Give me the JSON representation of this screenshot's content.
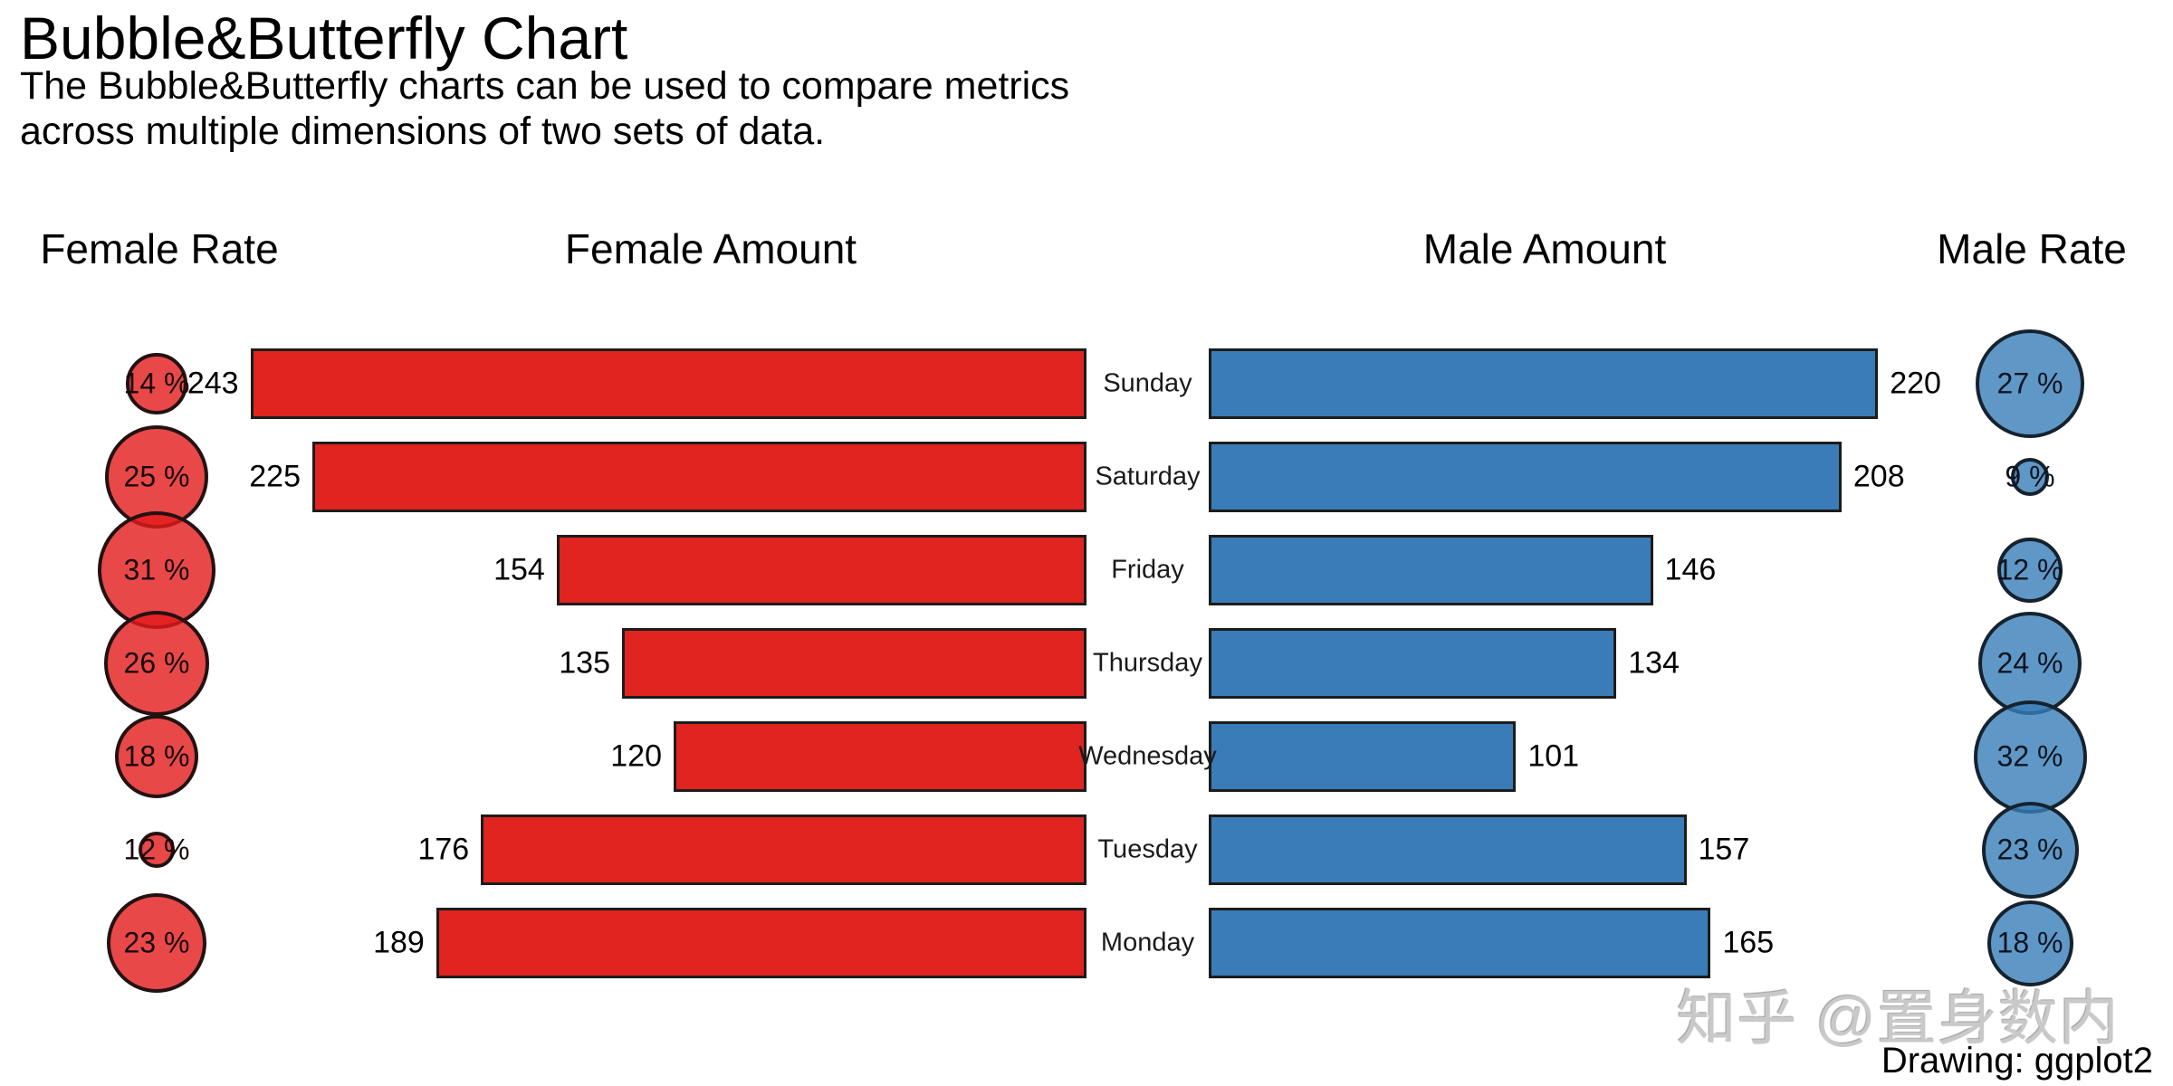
{
  "title": "Bubble&Butterfly Chart",
  "subtitle_line1": "The Bubble&Butterfly charts can be used to compare metrics",
  "subtitle_line2": "across multiple dimensions of two sets of data.",
  "headers": {
    "female_rate": "Female Rate",
    "female_amount": "Female Amount",
    "male_amount": "Male Amount",
    "male_rate": "Male Rate"
  },
  "watermark": "知乎 @置身数内",
  "credit": "Drawing: ggplot2",
  "colors": {
    "female_bar": "#e0241f",
    "male_bar": "#3a7cb7",
    "female_bubble": "rgba(228,26,28,0.80)",
    "male_bubble": "rgba(55,126,184,0.80)",
    "stroke": "#1c1c1c",
    "watermark_gray": "#c9c9c9"
  },
  "chart_data": {
    "type": "bar",
    "subtype": "butterfly-bubble",
    "categories": [
      "Sunday",
      "Saturday",
      "Friday",
      "Thursday",
      "Wednesday",
      "Tuesday",
      "Monday"
    ],
    "series": [
      {
        "name": "Female Rate",
        "unit": "%",
        "values": [
          14,
          25,
          31,
          26,
          18,
          12,
          23
        ]
      },
      {
        "name": "Female Amount",
        "values": [
          243,
          225,
          154,
          135,
          120,
          176,
          189
        ]
      },
      {
        "name": "Male Amount",
        "values": [
          220,
          208,
          146,
          134,
          101,
          157,
          165
        ]
      },
      {
        "name": "Male Rate",
        "unit": "%",
        "values": [
          27,
          9,
          12,
          24,
          32,
          23,
          18
        ]
      }
    ],
    "legend_position": "none",
    "grid": false,
    "axes_visible": false,
    "female_axis_max": 243,
    "male_axis_max": 220
  }
}
